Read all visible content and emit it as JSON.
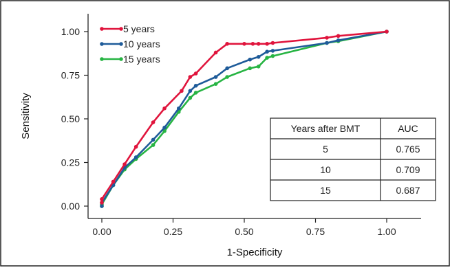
{
  "chart_data": {
    "type": "line",
    "xlabel": "1-Specificity",
    "ylabel": "Sensitivity",
    "xlim": [
      0,
      1
    ],
    "ylim": [
      0,
      1
    ],
    "x_ticks": [
      "0.00",
      "0.25",
      "0.50",
      "0.75",
      "1.00"
    ],
    "y_ticks": [
      "0.00",
      "0.25",
      "0.50",
      "0.75",
      "1.00"
    ],
    "grid": false,
    "legend_position": "top-left",
    "series": [
      {
        "name": "5 years",
        "color": "#e0143c",
        "points": [
          [
            0,
            0.02
          ],
          [
            0,
            0.04
          ],
          [
            0.04,
            0.14
          ],
          [
            0.08,
            0.24
          ],
          [
            0.12,
            0.34
          ],
          [
            0.18,
            0.48
          ],
          [
            0.22,
            0.56
          ],
          [
            0.28,
            0.66
          ],
          [
            0.31,
            0.74
          ],
          [
            0.33,
            0.76
          ],
          [
            0.4,
            0.88
          ],
          [
            0.44,
            0.93
          ],
          [
            0.5,
            0.93
          ],
          [
            0.53,
            0.93
          ],
          [
            0.55,
            0.93
          ],
          [
            0.58,
            0.93
          ],
          [
            0.6,
            0.935
          ],
          [
            0.79,
            0.965
          ],
          [
            0.83,
            0.975
          ],
          [
            1.0,
            1.0
          ]
        ]
      },
      {
        "name": "10 years",
        "color": "#1e5b99",
        "points": [
          [
            0,
            0
          ],
          [
            0,
            0.02
          ],
          [
            0.04,
            0.12
          ],
          [
            0.08,
            0.22
          ],
          [
            0.12,
            0.28
          ],
          [
            0.18,
            0.38
          ],
          [
            0.22,
            0.45
          ],
          [
            0.27,
            0.56
          ],
          [
            0.31,
            0.66
          ],
          [
            0.33,
            0.69
          ],
          [
            0.4,
            0.74
          ],
          [
            0.44,
            0.79
          ],
          [
            0.52,
            0.84
          ],
          [
            0.55,
            0.855
          ],
          [
            0.58,
            0.885
          ],
          [
            0.6,
            0.89
          ],
          [
            0.79,
            0.935
          ],
          [
            0.83,
            0.95
          ],
          [
            1.0,
            1.0
          ]
        ]
      },
      {
        "name": "15 years",
        "color": "#27b443",
        "points": [
          [
            0,
            0
          ],
          [
            0,
            0.01
          ],
          [
            0.04,
            0.12
          ],
          [
            0.08,
            0.21
          ],
          [
            0.12,
            0.27
          ],
          [
            0.18,
            0.35
          ],
          [
            0.22,
            0.43
          ],
          [
            0.27,
            0.54
          ],
          [
            0.31,
            0.62
          ],
          [
            0.33,
            0.65
          ],
          [
            0.4,
            0.7
          ],
          [
            0.44,
            0.74
          ],
          [
            0.52,
            0.79
          ],
          [
            0.55,
            0.8
          ],
          [
            0.58,
            0.85
          ],
          [
            0.6,
            0.86
          ],
          [
            0.79,
            0.935
          ],
          [
            0.83,
            0.945
          ],
          [
            1.0,
            1.0
          ]
        ]
      }
    ],
    "table": {
      "headers": [
        "Years after BMT",
        "AUC"
      ],
      "rows": [
        [
          "5",
          "0.765"
        ],
        [
          "10",
          "0.709"
        ],
        [
          "15",
          "0.687"
        ]
      ]
    }
  }
}
